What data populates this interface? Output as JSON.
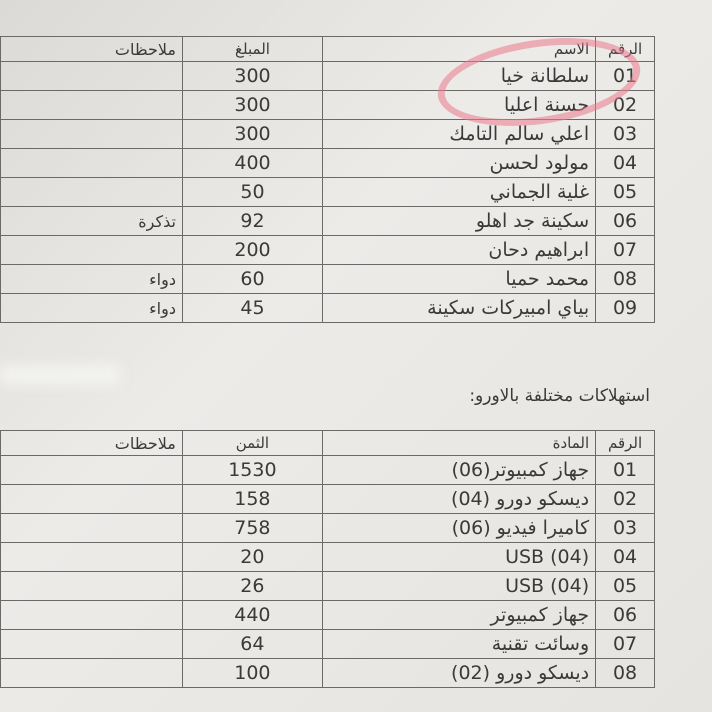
{
  "table1": {
    "headers": {
      "number": "الرقم",
      "name": "الاسم",
      "amount": "المبلغ",
      "notes": "ملاحظات"
    },
    "rows": [
      {
        "number": "01",
        "name": "سلطانة خيا",
        "amount": "300",
        "notes": ""
      },
      {
        "number": "02",
        "name": "حسنة اعليا",
        "amount": "300",
        "notes": ""
      },
      {
        "number": "03",
        "name": "اعلي سالم التامك",
        "amount": "300",
        "notes": ""
      },
      {
        "number": "04",
        "name": "مولود لحسن",
        "amount": "400",
        "notes": ""
      },
      {
        "number": "05",
        "name": "غلية الجماني",
        "amount": "50",
        "notes": ""
      },
      {
        "number": "06",
        "name": "سكينة جد اهلو",
        "amount": "92",
        "notes": "تذكرة"
      },
      {
        "number": "07",
        "name": "ابراهيم دحان",
        "amount": "200",
        "notes": ""
      },
      {
        "number": "08",
        "name": "محمد حميا",
        "amount": "60",
        "notes": "دواء"
      },
      {
        "number": "09",
        "name": "بياي امبيركات سكينة",
        "amount": "45",
        "notes": "دواء"
      }
    ]
  },
  "section2_title": "استهلاكات مختلفة بالاورو:",
  "table2": {
    "headers": {
      "number": "الرقم",
      "item": "المادة",
      "price": "الثمن",
      "notes": "ملاحظات"
    },
    "rows": [
      {
        "number": "01",
        "item": "جهاز كمبيوتر(06)",
        "price": "1530"
      },
      {
        "number": "02",
        "item": "ديسكو دورو (04)",
        "price": "158"
      },
      {
        "number": "03",
        "item": "كاميرا فيديو (06)",
        "price": "758"
      },
      {
        "number": "04",
        "item": "USB (04)",
        "price": "20"
      },
      {
        "number": "05",
        "item": "USB (04)",
        "price": "26"
      },
      {
        "number": "06",
        "item": "جهاز كمبيوتر",
        "price": "440"
      },
      {
        "number": "07",
        "item": "وسائت تقنية",
        "price": "64"
      },
      {
        "number": "08",
        "item": "ديسكو دورو (02)",
        "price": "100"
      }
    ]
  },
  "annotation_color": "#eb788c"
}
